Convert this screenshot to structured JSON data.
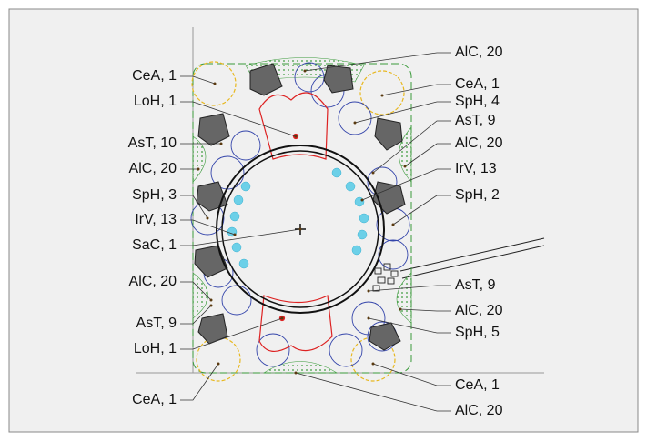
{
  "labels": [
    "CeA, 1",
    "LoH, 1",
    "AsT, 10",
    "AlC, 20",
    "SpH, 3",
    "IrV, 13",
    "SaC, 1",
    "AlC, 20",
    "AsT, 9",
    "LoH, 1",
    "CeA, 1",
    "AlC, 20",
    "CeA, 1",
    "SpH, 4",
    "AsT, 9",
    "AlC, 20",
    "IrV, 13",
    "SpH, 2",
    "AsT, 9",
    "AlC, 20",
    "SpH, 5",
    "CeA, 1",
    "AlC, 20"
  ]
}
